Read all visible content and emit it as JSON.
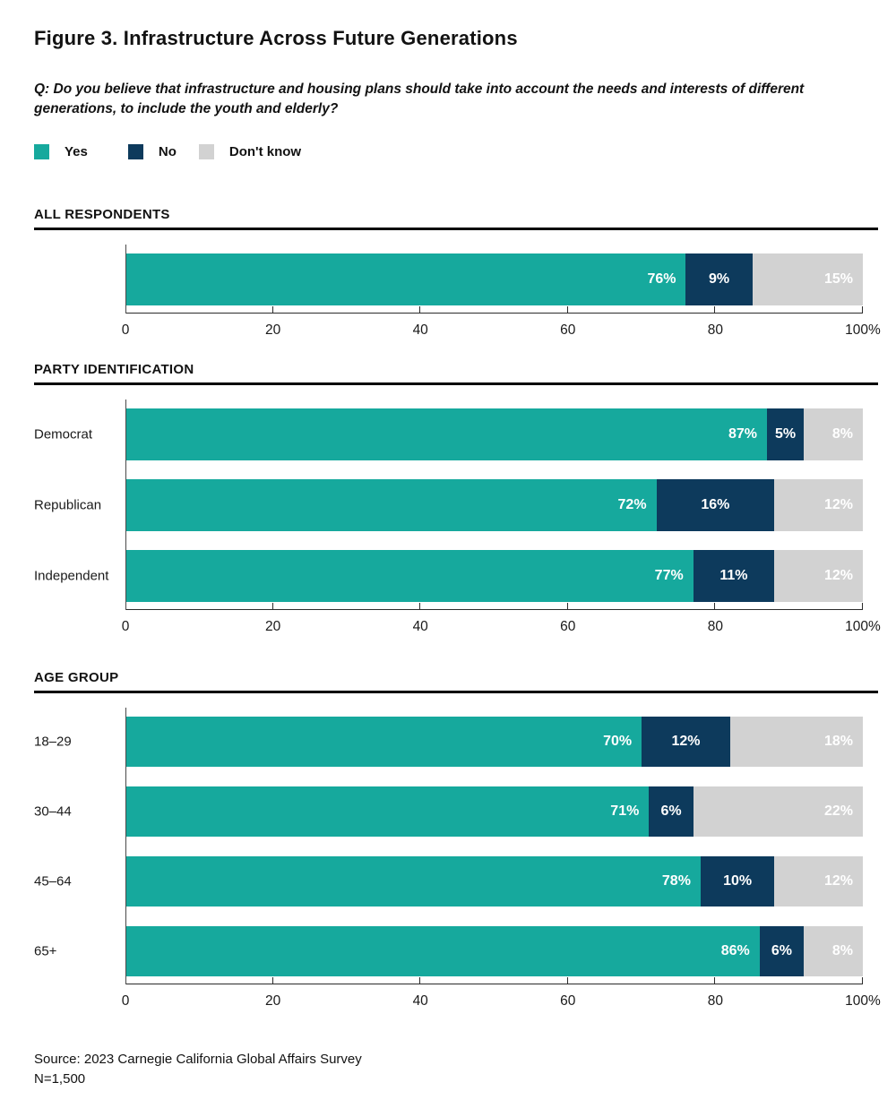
{
  "title": "Figure 3. Infrastructure Across Future Generations",
  "question": "Q: Do you believe that infrastructure and housing plans should take into account the needs and interests of different generations, to include the youth and elderly?",
  "legend": {
    "items": [
      {
        "label": "Yes",
        "color": "#16a99d"
      },
      {
        "label": "No",
        "color": "#0d3a5c"
      },
      {
        "label": "Don't know",
        "color": "#d2d2d2"
      }
    ]
  },
  "colors": {
    "yes": "#16a99d",
    "no": "#0d3a5c",
    "dont_know": "#d2d2d2",
    "rule": "#000000",
    "axis": "#2b2b2b",
    "bar_label": "#ffffff"
  },
  "source": "Source: 2023 Carnegie California Global Affairs Survey",
  "n_label": "N=1,500",
  "chart_data": [
    {
      "type": "bar",
      "stacked": true,
      "orientation": "horizontal",
      "section": "ALL RESPONDENTS",
      "categories": [
        ""
      ],
      "series": [
        {
          "name": "Yes",
          "values": [
            76
          ]
        },
        {
          "name": "No",
          "values": [
            9
          ]
        },
        {
          "name": "Don't know",
          "values": [
            15
          ]
        }
      ],
      "xlim": [
        0,
        100
      ],
      "ticks": [
        {
          "v": 0,
          "label": "0"
        },
        {
          "v": 20,
          "label": "20"
        },
        {
          "v": 40,
          "label": "40"
        },
        {
          "v": 60,
          "label": "60"
        },
        {
          "v": 80,
          "label": "80"
        },
        {
          "v": 100,
          "label": "100%"
        }
      ],
      "grid": false,
      "legend_position": "top"
    },
    {
      "type": "bar",
      "stacked": true,
      "orientation": "horizontal",
      "section": "PARTY IDENTIFICATION",
      "categories": [
        "Democrat",
        "Republican",
        "Independent"
      ],
      "series": [
        {
          "name": "Yes",
          "values": [
            87,
            72,
            77
          ]
        },
        {
          "name": "No",
          "values": [
            5,
            16,
            11
          ]
        },
        {
          "name": "Don't know",
          "values": [
            8,
            12,
            12
          ]
        }
      ],
      "xlim": [
        0,
        100
      ],
      "ticks": [
        {
          "v": 0,
          "label": "0"
        },
        {
          "v": 20,
          "label": "20"
        },
        {
          "v": 40,
          "label": "40"
        },
        {
          "v": 60,
          "label": "60"
        },
        {
          "v": 80,
          "label": "80"
        },
        {
          "v": 100,
          "label": "100%"
        }
      ],
      "grid": false,
      "legend_position": "top"
    },
    {
      "type": "bar",
      "stacked": true,
      "orientation": "horizontal",
      "section": "AGE GROUP",
      "categories": [
        "18–29",
        "30–44",
        "45–64",
        "65+"
      ],
      "series": [
        {
          "name": "Yes",
          "values": [
            70,
            71,
            78,
            86
          ]
        },
        {
          "name": "No",
          "values": [
            12,
            6,
            10,
            6
          ]
        },
        {
          "name": "Don't know",
          "values": [
            18,
            22,
            12,
            8
          ]
        }
      ],
      "xlim": [
        0,
        100
      ],
      "ticks": [
        {
          "v": 0,
          "label": "0"
        },
        {
          "v": 20,
          "label": "20"
        },
        {
          "v": 40,
          "label": "40"
        },
        {
          "v": 60,
          "label": "60"
        },
        {
          "v": 80,
          "label": "80"
        },
        {
          "v": 100,
          "label": "100%"
        }
      ],
      "grid": false,
      "legend_position": "top"
    }
  ],
  "sections": [
    {
      "header": "ALL RESPONDENTS"
    },
    {
      "header": "PARTY IDENTIFICATION"
    },
    {
      "header": "AGE GROUP"
    }
  ]
}
